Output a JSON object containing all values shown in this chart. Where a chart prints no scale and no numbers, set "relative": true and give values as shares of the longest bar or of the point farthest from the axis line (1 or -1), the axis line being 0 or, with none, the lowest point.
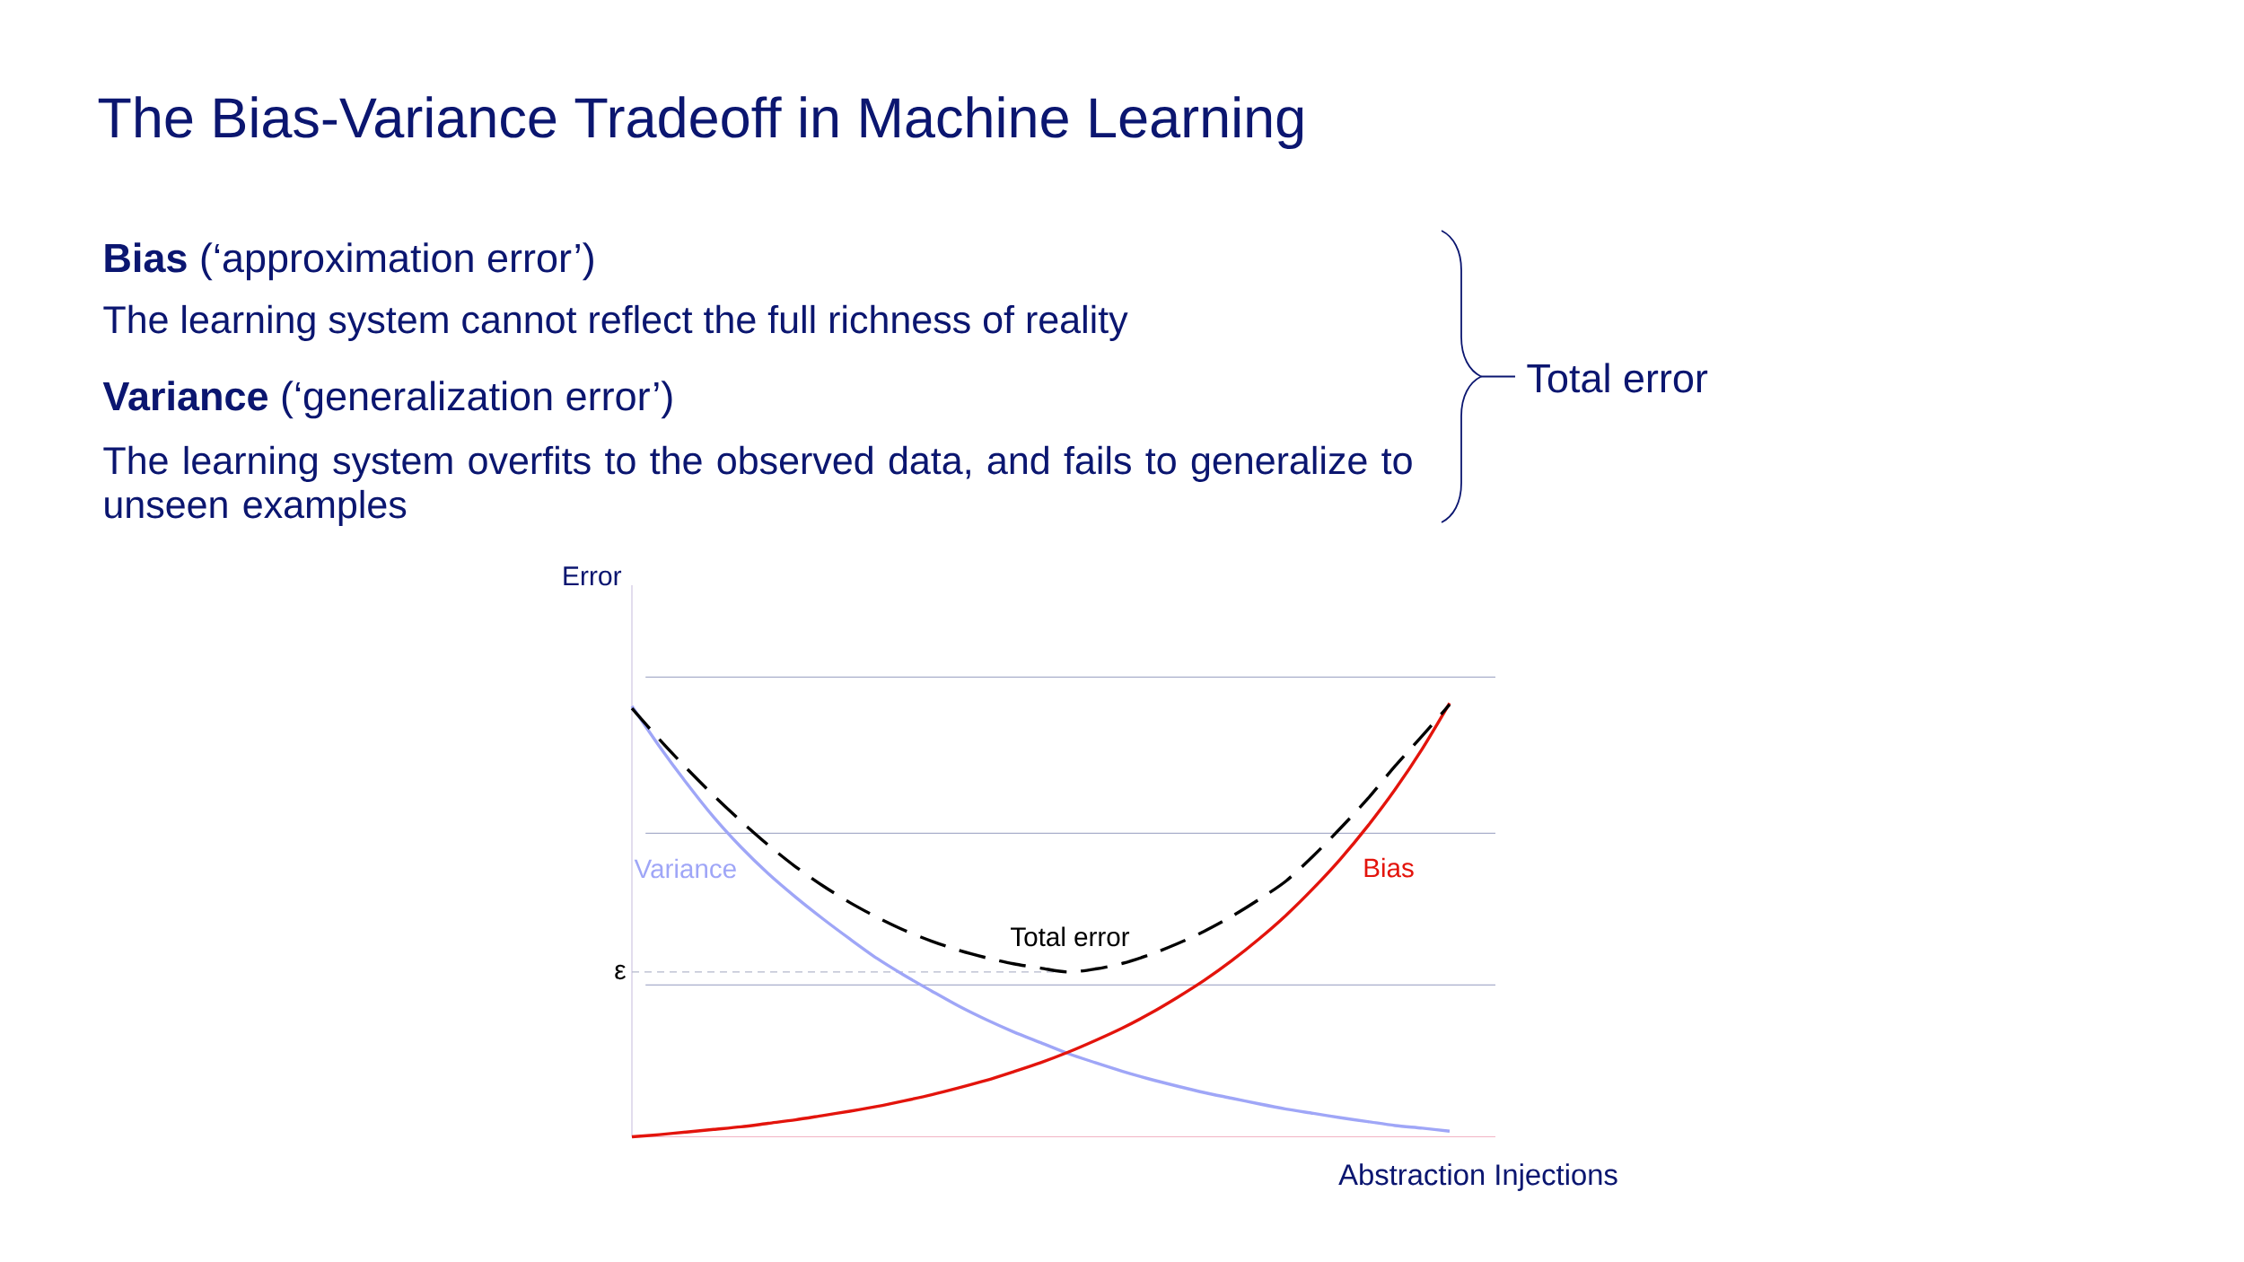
{
  "chart_data": {
    "type": "line",
    "title": "The Bias-Variance Tradeoff in Machine Learning",
    "xlabel": "Abstraction Injections",
    "ylabel": "Error",
    "relative": true,
    "categories": [
      null,
      null,
      null,
      null,
      null,
      null,
      null,
      null,
      null,
      null,
      null,
      null,
      null,
      null,
      null,
      null,
      null,
      null,
      null,
      null,
      null,
      null,
      null,
      null,
      null,
      null,
      null,
      null,
      null,
      null,
      null
    ],
    "series": [
      {
        "name": "Variance",
        "color": "#9fa6f7",
        "values": [
          0.993,
          0.901,
          0.816,
          0.737,
          0.668,
          0.607,
          0.553,
          0.503,
          0.456,
          0.411,
          0.372,
          0.336,
          0.301,
          0.27,
          0.242,
          0.217,
          0.192,
          0.171,
          0.151,
          0.133,
          0.117,
          0.102,
          0.089,
          0.076,
          0.064,
          0.054,
          0.044,
          0.035,
          0.026,
          0.02,
          0.013
        ]
      },
      {
        "name": "Bias",
        "color": "#e3140c",
        "values": [
          0.0,
          0.005,
          0.011,
          0.017,
          0.023,
          0.031,
          0.039,
          0.049,
          0.059,
          0.07,
          0.083,
          0.097,
          0.113,
          0.13,
          0.15,
          0.171,
          0.195,
          0.222,
          0.251,
          0.284,
          0.321,
          0.361,
          0.406,
          0.456,
          0.511,
          0.573,
          0.641,
          0.717,
          0.801,
          0.895,
          1.0
        ]
      },
      {
        "name": "Total error",
        "color": "#000000",
        "line_style": "dashed",
        "values": [
          0.988,
          0.917,
          0.85,
          0.787,
          0.728,
          0.673,
          0.623,
          0.579,
          0.54,
          0.506,
          0.476,
          0.451,
          0.43,
          0.413,
          0.399,
          0.389,
          0.38,
          0.387,
          0.4,
          0.42,
          0.445,
          0.474,
          0.508,
          0.547,
          0.59,
          0.648,
          0.712,
          0.78,
          0.855,
          0.925,
          0.997
        ]
      }
    ],
    "ref_lines": [
      {
        "axis": "y",
        "value": 0.38,
        "label": "ε",
        "color": "#b4b8cc",
        "line_style": "dashed"
      },
      {
        "axis": "y",
        "value": 0.35,
        "color": "#a9aecb"
      },
      {
        "axis": "y",
        "value": 0.7,
        "color": "#a9aecb"
      },
      {
        "axis": "y",
        "value": 1.06,
        "color": "#a9aecb"
      }
    ],
    "annotations": [
      "**Bias** (‘approximation error’)",
      "The learning system cannot reflect the full richness of reality",
      "**Variance** (‘generalization error’)",
      "The learning system overfits to the observed data, and fails to generalize to unseen examples",
      "Total error"
    ]
  }
}
